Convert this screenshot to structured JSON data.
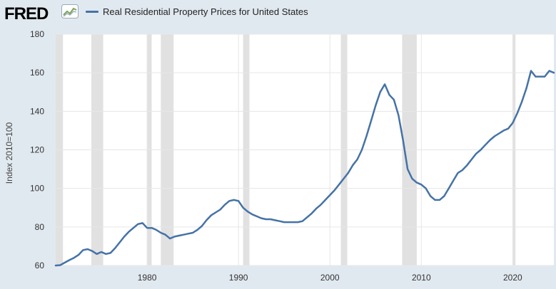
{
  "header": {
    "logo_text": "FRED",
    "logo_icon": "line-chart-icon",
    "legend_label": "Real Residential Property Prices for United States",
    "legend_color": "#4572a7"
  },
  "chart_data": {
    "type": "line",
    "title": "",
    "xlabel": "",
    "ylabel": "Index 2010=100",
    "xlim": [
      1970.0,
      2024.5
    ],
    "ylim": [
      60,
      180
    ],
    "y_ticks": [
      60,
      80,
      100,
      120,
      140,
      160,
      180
    ],
    "x_ticks": [
      1980,
      1990,
      2000,
      2010,
      2020
    ],
    "grid": true,
    "line_color": "#4572a7",
    "recessions": [
      [
        1970.0,
        1970.8
      ],
      [
        1973.9,
        1975.2
      ],
      [
        1980.0,
        1980.5
      ],
      [
        1981.5,
        1982.9
      ],
      [
        1990.5,
        1991.2
      ],
      [
        2001.2,
        2001.9
      ],
      [
        2007.9,
        2009.5
      ],
      [
        2020.0,
        2020.3
      ]
    ],
    "series": [
      {
        "name": "Real Residential Property Prices for United States",
        "x": [
          1970.0,
          1970.5,
          1971.0,
          1971.5,
          1972.0,
          1972.5,
          1973.0,
          1973.5,
          1974.0,
          1974.5,
          1975.0,
          1975.5,
          1976.0,
          1976.5,
          1977.0,
          1977.5,
          1978.0,
          1978.5,
          1979.0,
          1979.5,
          1980.0,
          1980.5,
          1981.0,
          1981.5,
          1982.0,
          1982.5,
          1983.0,
          1983.5,
          1984.0,
          1984.5,
          1985.0,
          1985.5,
          1986.0,
          1986.5,
          1987.0,
          1987.5,
          1988.0,
          1988.5,
          1989.0,
          1989.5,
          1990.0,
          1990.5,
          1991.0,
          1991.5,
          1992.0,
          1992.5,
          1993.0,
          1993.5,
          1994.0,
          1994.5,
          1995.0,
          1995.5,
          1996.0,
          1996.5,
          1997.0,
          1997.5,
          1998.0,
          1998.5,
          1999.0,
          1999.5,
          2000.0,
          2000.5,
          2001.0,
          2001.5,
          2002.0,
          2002.5,
          2003.0,
          2003.5,
          2004.0,
          2004.5,
          2005.0,
          2005.5,
          2006.0,
          2006.5,
          2007.0,
          2007.5,
          2008.0,
          2008.5,
          2009.0,
          2009.5,
          2010.0,
          2010.5,
          2011.0,
          2011.5,
          2012.0,
          2012.5,
          2013.0,
          2013.5,
          2014.0,
          2014.5,
          2015.0,
          2015.5,
          2016.0,
          2016.5,
          2017.0,
          2017.5,
          2018.0,
          2018.5,
          2019.0,
          2019.5,
          2020.0,
          2020.5,
          2021.0,
          2021.5,
          2022.0,
          2022.5,
          2023.0,
          2023.5,
          2024.0,
          2024.5
        ],
        "values": [
          60.0,
          60.2,
          61.5,
          62.8,
          64.0,
          65.5,
          68.0,
          68.5,
          67.5,
          66.0,
          67.0,
          66.0,
          66.5,
          69.0,
          72.0,
          75.0,
          77.5,
          79.5,
          81.5,
          82.0,
          79.5,
          79.5,
          78.5,
          77.0,
          76.0,
          74.0,
          75.0,
          75.5,
          76.0,
          76.5,
          77.0,
          78.5,
          80.5,
          83.5,
          86.0,
          87.5,
          89.0,
          91.5,
          93.5,
          94.0,
          93.5,
          90.0,
          88.0,
          86.5,
          85.5,
          84.5,
          84.0,
          84.0,
          83.5,
          83.0,
          82.5,
          82.5,
          82.5,
          82.5,
          83.0,
          85.0,
          87.0,
          89.5,
          91.5,
          94.0,
          96.5,
          99.0,
          102.0,
          105.0,
          108.0,
          112.0,
          115.0,
          120.0,
          127.0,
          135.0,
          143.0,
          150.0,
          154.0,
          148.5,
          146.0,
          138.0,
          125.0,
          110.0,
          105.0,
          103.0,
          102.0,
          100.0,
          96.0,
          94.0,
          94.0,
          96.0,
          100.0,
          104.0,
          108.0,
          109.5,
          112.0,
          115.0,
          118.0,
          120.0,
          122.5,
          125.0,
          127.0,
          128.5,
          130.0,
          131.0,
          134.0,
          139.0,
          145.0,
          152.0,
          161.0,
          158.0,
          158.0,
          158.0,
          161.0,
          160.0
        ]
      }
    ]
  }
}
